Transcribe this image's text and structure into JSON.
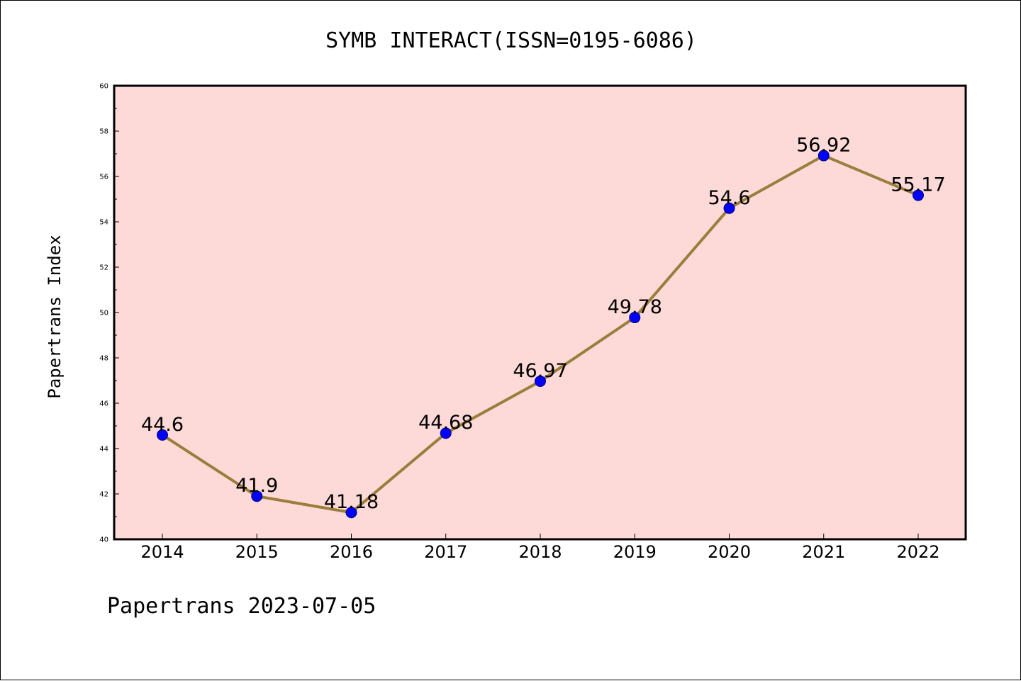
{
  "chart_data": {
    "type": "line",
    "title": "SYMB INTERACT(ISSN=0195-6086)",
    "xlabel": "",
    "ylabel": "Papertrans Index",
    "footer": "Papertrans 2023-07-05",
    "categories": [
      "2014",
      "2015",
      "2016",
      "2017",
      "2018",
      "2019",
      "2020",
      "2021",
      "2022"
    ],
    "values": [
      44.6,
      41.9,
      41.18,
      44.68,
      46.97,
      49.78,
      54.6,
      56.92,
      55.17
    ],
    "data_labels": [
      "44.6",
      "41.9",
      "41.18",
      "44.68",
      "46.97",
      "49.78",
      "54.6",
      "56.92",
      "55.17"
    ],
    "ylim": [
      40,
      60
    ],
    "yticks": [
      "40",
      "42",
      "44",
      "46",
      "48",
      "50",
      "52",
      "54",
      "56",
      "58",
      "60"
    ],
    "grid": false,
    "legend": "none",
    "colors": {
      "plot_background": "#fddad8",
      "line": "#9b7d3c",
      "marker_fill": "#0000ff",
      "marker_edge": "#000080",
      "axis": "#000000"
    }
  }
}
